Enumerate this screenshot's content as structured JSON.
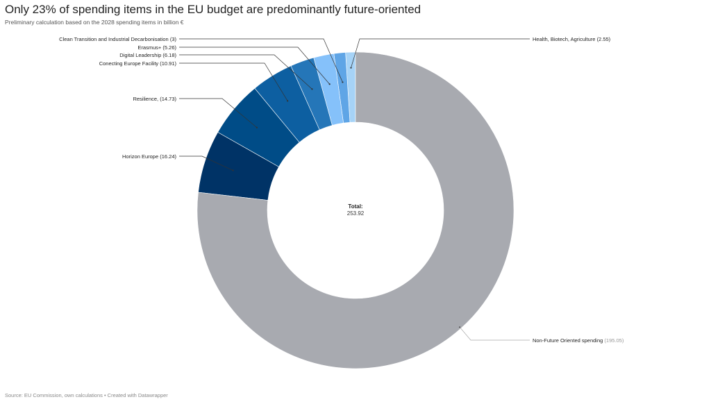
{
  "title": "Only 23% of spending items in the EU budget are predominantly future-oriented",
  "subtitle": "Preliminary calculation based on the 2028 spending items in billion €",
  "source": "Source: EU Commission, own calculations • Created with Datawrapper",
  "chart_data": {
    "type": "pie",
    "variant": "donut",
    "total_label": "Total:",
    "total_value": "253.92",
    "slices": [
      {
        "label": "Health, Biotech, Agriculture",
        "value": 2.55,
        "value_text": "(2.55)",
        "color": "#a6d3f7"
      },
      {
        "label": "Clean Transition and Industrial Decarbonisation",
        "value": 3,
        "value_text": "(3)",
        "color": "#5fa5e6"
      },
      {
        "label": "Erasmus+",
        "value": 5.26,
        "value_text": "(5.26)",
        "color": "#85c1fa"
      },
      {
        "label": "Digital Leadership",
        "value": 6.18,
        "value_text": "(6.18)",
        "color": "#2576b8"
      },
      {
        "label": "Conecting Europe Facility",
        "value": 10.91,
        "value_text": "(10.91)",
        "color": "#0d5fa1"
      },
      {
        "label": "Resilience,",
        "value": 14.73,
        "value_text": "(14.73)",
        "color": "#004c87"
      },
      {
        "label": "Horizon Europe",
        "value": 16.24,
        "value_text": "(16.24)",
        "color": "#003366"
      },
      {
        "label": "Non-Future Oriented spending",
        "value": 195.05,
        "value_text": "(195.05)",
        "color": "#a8aab0"
      }
    ]
  }
}
